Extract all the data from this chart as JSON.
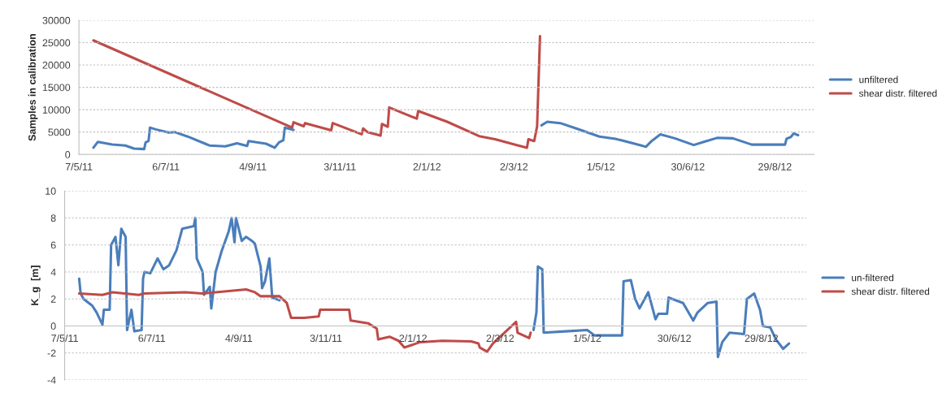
{
  "chart_data": [
    {
      "type": "line",
      "ylabel": "Samples in calibration",
      "xlim": [
        "2011-05-07",
        "2012-09-25"
      ],
      "ylim": [
        0,
        30000
      ],
      "yticks": [
        0,
        5000,
        10000,
        15000,
        20000,
        25000,
        30000
      ],
      "xticks": [
        {
          "value": "2011-05-07",
          "label": "7/5/11"
        },
        {
          "value": "2011-07-06",
          "label": "6/7/11"
        },
        {
          "value": "2011-09-04",
          "label": "4/9/11"
        },
        {
          "value": "2011-11-03",
          "label": "3/11/11"
        },
        {
          "value": "2012-01-02",
          "label": "2/1/12"
        },
        {
          "value": "2012-03-02",
          "label": "2/3/12"
        },
        {
          "value": "2012-05-01",
          "label": "1/5/12"
        },
        {
          "value": "2012-06-30",
          "label": "30/6/12"
        },
        {
          "value": "2012-08-29",
          "label": "29/8/12"
        }
      ],
      "grid": "y",
      "legend": "right",
      "line_style": "solid",
      "marker": "none",
      "series": [
        {
          "name": "unfiltered",
          "color": "#4a7ebb",
          "x": [
            "2011-05-17",
            "2011-05-20",
            "2011-05-30",
            "2011-06-08",
            "2011-06-14",
            "2011-06-21",
            "2011-06-22",
            "2011-06-24",
            "2011-06-25",
            "2011-06-29",
            "2011-07-08",
            "2011-07-12",
            "2011-07-21",
            "2011-08-05",
            "2011-08-16",
            "2011-08-24",
            "2011-08-31",
            "2011-09-01",
            "2011-09-13",
            "2011-09-19",
            "2011-09-22",
            "2011-09-25",
            "2011-09-26",
            "2011-10-02",
            "2011-10-03",
            "2012-03-21",
            "2012-03-25",
            "2012-04-03",
            "2012-04-14",
            "2012-04-30",
            "2012-05-11",
            "2012-05-29",
            "2012-06-01",
            "2012-06-05",
            "2012-06-11",
            "2012-06-21",
            "2012-07-04",
            "2012-07-11",
            "2012-07-20",
            "2012-07-31",
            "2012-08-13",
            "2012-08-25",
            "2012-09-05",
            "2012-09-06",
            "2012-09-09",
            "2012-09-11",
            "2012-09-14"
          ],
          "values": [
            1500,
            2800,
            2200,
            2000,
            1300,
            1200,
            2700,
            3000,
            6000,
            5600,
            4900,
            5000,
            4000,
            2000,
            1800,
            2500,
            1900,
            3000,
            2400,
            1500,
            2700,
            3200,
            6000,
            5500,
            null,
            6500,
            7300,
            7000,
            5800,
            4000,
            3500,
            2000,
            1700,
            3000,
            4500,
            3600,
            2100,
            2800,
            3700,
            3600,
            2200,
            2200,
            2200,
            3500,
            3900,
            4700,
            4300
          ]
        },
        {
          "name": "shear distr. filtered",
          "color": "#be4b48",
          "x": [
            "2011-05-17",
            "2011-10-01",
            "2011-10-02",
            "2011-10-09",
            "2011-10-10",
            "2011-10-28",
            "2011-10-29",
            "2011-11-18",
            "2011-11-19",
            "2011-11-22",
            "2011-12-01",
            "2011-12-02",
            "2011-12-06",
            "2011-12-07",
            "2011-12-26",
            "2011-12-27",
            "2012-01-16",
            "2012-02-07",
            "2012-02-18",
            "2012-03-05",
            "2012-03-11",
            "2012-03-12",
            "2012-03-16",
            "2012-03-18",
            "2012-03-20"
          ],
          "values": [
            25500,
            6000,
            7200,
            6300,
            7000,
            5400,
            7000,
            4500,
            5800,
            5000,
            4200,
            6800,
            6200,
            10500,
            8000,
            9700,
            7300,
            4100,
            3400,
            2000,
            1500,
            3400,
            3000,
            6300,
            26450
          ]
        }
      ]
    },
    {
      "type": "line",
      "ylabel": "K_g  [m]",
      "xlim": [
        "2011-05-07",
        "2012-09-29"
      ],
      "ylim": [
        -4,
        10
      ],
      "yticks": [
        -4,
        -2,
        0,
        2,
        4,
        6,
        8,
        10
      ],
      "xticks": [
        {
          "value": "2011-05-07",
          "label": "7/5/11"
        },
        {
          "value": "2011-07-06",
          "label": "6/7/11"
        },
        {
          "value": "2011-09-04",
          "label": "4/9/11"
        },
        {
          "value": "2011-11-03",
          "label": "3/11/11"
        },
        {
          "value": "2012-01-02",
          "label": "2/1/12"
        },
        {
          "value": "2012-03-02",
          "label": "2/3/12"
        },
        {
          "value": "2012-05-01",
          "label": "1/5/12"
        },
        {
          "value": "2012-06-30",
          "label": "30/6/12"
        },
        {
          "value": "2012-08-29",
          "label": "29/8/12"
        }
      ],
      "grid": "y",
      "legend": "right",
      "line_style": "solid",
      "marker": "none",
      "series": [
        {
          "name": "un-filtered",
          "color": "#4a7ebb",
          "x": [
            "2011-05-17",
            "2011-05-18",
            "2011-05-20",
            "2011-05-26",
            "2011-05-29",
            "2011-06-02",
            "2011-06-03",
            "2011-06-07",
            "2011-06-08",
            "2011-06-11",
            "2011-06-13",
            "2011-06-15",
            "2011-06-18",
            "2011-06-19",
            "2011-06-22",
            "2011-06-24",
            "2011-06-29",
            "2011-06-30",
            "2011-07-01",
            "2011-07-05",
            "2011-07-10",
            "2011-07-14",
            "2011-07-18",
            "2011-07-23",
            "2011-07-27",
            "2011-08-04",
            "2011-08-05",
            "2011-08-06",
            "2011-08-10",
            "2011-08-11",
            "2011-08-15",
            "2011-08-16",
            "2011-08-19",
            "2011-08-23",
            "2011-08-28",
            "2011-08-30",
            "2011-09-01",
            "2011-09-02",
            "2011-09-06",
            "2011-09-09",
            "2011-09-13",
            "2011-09-15",
            "2011-09-19",
            "2011-09-20",
            "2011-09-22",
            "2011-09-25",
            "2011-09-27",
            "2011-10-02",
            "2011-10-03",
            "2012-03-25",
            "2012-03-27",
            "2012-03-28",
            "2012-03-31",
            "2012-04-01",
            "2012-04-16",
            "2012-05-01",
            "2012-05-06",
            "2012-05-25",
            "2012-05-26",
            "2012-05-31",
            "2012-06-03",
            "2012-06-06",
            "2012-06-12",
            "2012-06-17",
            "2012-06-19",
            "2012-06-25",
            "2012-06-26",
            "2012-07-06",
            "2012-07-13",
            "2012-07-16",
            "2012-07-23",
            "2012-07-29",
            "2012-07-30",
            "2012-08-02",
            "2012-08-07",
            "2012-08-17",
            "2012-08-19",
            "2012-08-24",
            "2012-08-28",
            "2012-08-30",
            "2012-09-04",
            "2012-09-08",
            "2012-09-13",
            "2012-09-17"
          ],
          "values": [
            3.5,
            2.4,
            2.0,
            1.5,
            1.0,
            0.1,
            1.2,
            1.2,
            6.0,
            6.6,
            4.5,
            7.2,
            6.6,
            -0.3,
            1.2,
            -0.4,
            -0.3,
            3.5,
            4.0,
            3.9,
            5.0,
            4.2,
            4.5,
            5.6,
            7.2,
            7.4,
            8.0,
            5.0,
            4.0,
            2.3,
            2.9,
            1.3,
            4.0,
            5.5,
            7.0,
            8.0,
            6.2,
            8.0,
            6.3,
            6.6,
            6.3,
            6.1,
            4.4,
            2.8,
            3.3,
            5.0,
            2.1,
            1.9,
            null,
            -0.3,
            1.0,
            4.4,
            4.2,
            -0.5,
            -0.4,
            -0.3,
            -0.7,
            -0.7,
            3.3,
            3.4,
            2.0,
            1.3,
            2.5,
            0.5,
            0.9,
            0.9,
            2.1,
            1.7,
            0.4,
            1.0,
            1.7,
            1.8,
            -2.3,
            -1.2,
            -0.5,
            -0.6,
            2.0,
            2.4,
            1.2,
            0.0,
            -0.1,
            -1.0,
            -1.7,
            -1.3
          ]
        },
        {
          "name": "shear distr. filtered",
          "color": "#be4b48",
          "x": [
            "2011-05-17",
            "2011-06-02",
            "2011-06-09",
            "2011-06-27",
            "2011-07-01",
            "2011-07-29",
            "2011-08-10",
            "2011-08-19",
            "2011-09-09",
            "2011-09-15",
            "2011-09-19",
            "2011-10-02",
            "2011-10-07",
            "2011-10-10",
            "2011-10-19",
            "2011-10-29",
            "2011-10-30",
            "2011-11-19",
            "2011-11-20",
            "2011-12-02",
            "2011-12-08",
            "2011-12-09",
            "2011-12-17",
            "2011-12-23",
            "2011-12-27",
            "2012-01-07",
            "2012-01-22",
            "2012-02-11",
            "2012-02-16",
            "2012-02-17",
            "2012-02-22",
            "2012-02-26",
            "2012-02-29",
            "2012-03-09",
            "2012-03-13",
            "2012-03-14",
            "2012-03-22",
            "2012-03-23"
          ],
          "values": [
            2.4,
            2.3,
            2.5,
            2.3,
            2.4,
            2.5,
            2.4,
            2.5,
            2.7,
            2.5,
            2.2,
            2.2,
            1.7,
            0.6,
            0.6,
            0.7,
            1.2,
            1.2,
            0.4,
            0.2,
            -0.2,
            -1.0,
            -0.8,
            -1.1,
            -1.6,
            -1.2,
            -1.1,
            -1.15,
            -1.3,
            -1.6,
            -1.9,
            -1.3,
            -1.0,
            -0.1,
            0.3,
            -0.5,
            -0.9,
            -0.5
          ]
        }
      ]
    }
  ]
}
